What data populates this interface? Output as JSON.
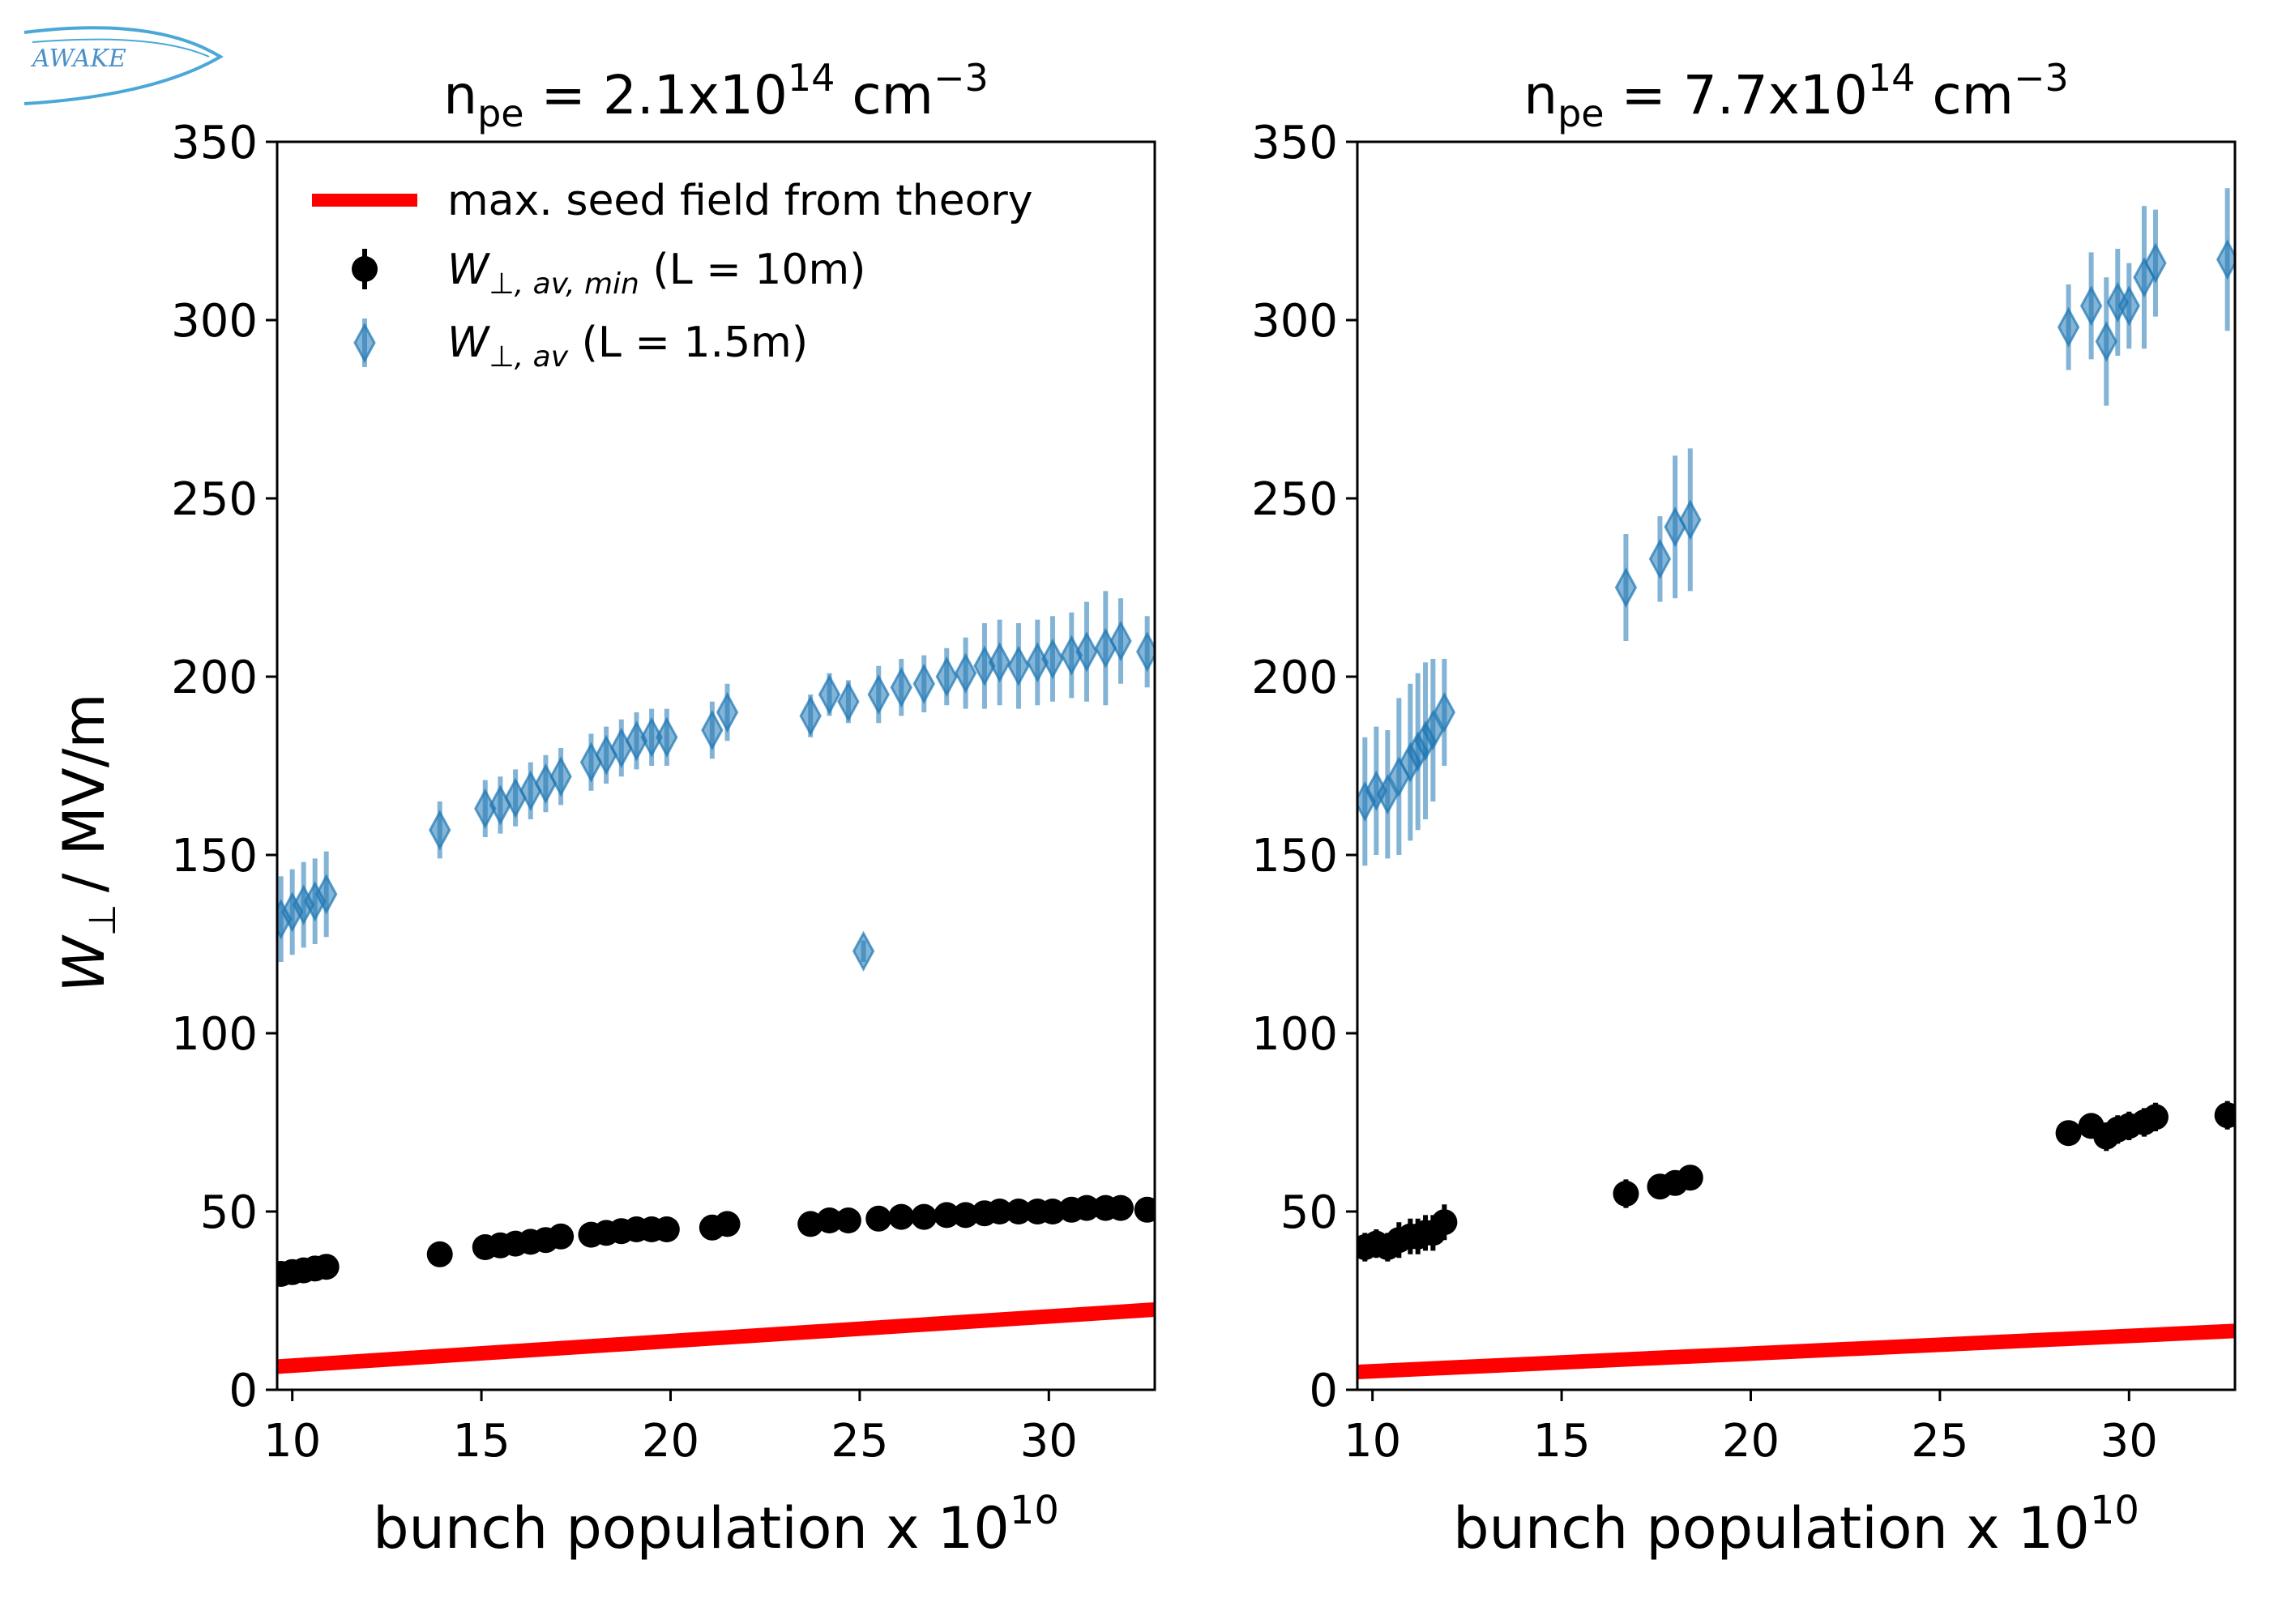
{
  "logo": {
    "text": "AWAKE",
    "color": "#4aa8d8"
  },
  "colors": {
    "theory": "#ff0000",
    "min_series": "#000000",
    "av_series": "#1f77b4"
  },
  "legend": {
    "theory_label": "max. seed field from theory",
    "min_symbol": "W",
    "min_subscript": "⊥, av, min",
    "min_suffix": "(L = 10m)",
    "av_symbol": "W",
    "av_subscript": "⊥, av",
    "av_suffix": "(L = 1.5m)"
  },
  "ylabel_symbol": "W",
  "ylabel_subscript": "⊥",
  "ylabel_unit": "/ MV/m",
  "chart_data": [
    {
      "type": "scatter",
      "title_base": "n",
      "title_sub": "pe",
      "title_value": " = 2.1x10",
      "title_exp": "14",
      "title_unit": " cm",
      "title_unit_exp": "−3",
      "xlabel": "bunch population x 10",
      "xlabel_exp": "10",
      "ylabel": "W⊥ / MV/m",
      "xlim": [
        9.6,
        32.8
      ],
      "ylim": [
        0,
        350
      ],
      "xticks": [
        10,
        15,
        20,
        25,
        30
      ],
      "yticks": [
        0,
        50,
        100,
        150,
        200,
        250,
        300,
        350
      ],
      "theory_line": {
        "name": "max. seed field from theory",
        "x": [
          9.6,
          32.8
        ],
        "y": [
          6.5,
          22.5
        ]
      },
      "series": [
        {
          "name": "W⊥,av,min (L = 10m)",
          "marker": "circle",
          "x": [
            9.7,
            10.0,
            10.3,
            10.6,
            10.9,
            13.9,
            15.1,
            15.5,
            15.9,
            16.3,
            16.7,
            17.1,
            17.9,
            18.3,
            18.7,
            19.1,
            19.5,
            19.9,
            21.1,
            21.5,
            23.7,
            24.2,
            24.7,
            25.5,
            26.1,
            26.7,
            27.3,
            27.8,
            28.3,
            28.7,
            29.2,
            29.7,
            30.1,
            30.6,
            31.0,
            31.5,
            31.9,
            32.6
          ],
          "y": [
            32.5,
            33.0,
            33.5,
            34.0,
            34.5,
            38.0,
            40.0,
            40.5,
            41.0,
            41.5,
            42.0,
            43.0,
            43.5,
            44.0,
            44.5,
            45.0,
            45.0,
            45.0,
            45.5,
            46.5,
            46.5,
            47.5,
            47.5,
            48.0,
            48.5,
            48.5,
            49.0,
            49.0,
            49.5,
            50.0,
            50.0,
            50.0,
            50.0,
            50.5,
            51.0,
            51.0,
            51.0,
            50.5
          ],
          "err": [
            2,
            2,
            2,
            2,
            2,
            2,
            2,
            2,
            2,
            2,
            2,
            2,
            2,
            2,
            2,
            2,
            2,
            2,
            2,
            2,
            2,
            2,
            2,
            2,
            2,
            2,
            2,
            2,
            2,
            2,
            2,
            2,
            2,
            3,
            3,
            3,
            3,
            3
          ]
        },
        {
          "name": "W⊥,av (L = 1.5m)",
          "marker": "diamond",
          "x": [
            9.7,
            10.0,
            10.3,
            10.6,
            10.9,
            13.9,
            15.1,
            15.5,
            15.9,
            16.3,
            16.7,
            17.1,
            17.9,
            18.3,
            18.7,
            19.1,
            19.5,
            19.9,
            21.1,
            21.5,
            23.7,
            24.2,
            24.7,
            25.1,
            25.5,
            26.1,
            26.7,
            27.3,
            27.8,
            28.3,
            28.7,
            29.2,
            29.7,
            30.1,
            30.6,
            31.0,
            31.5,
            31.9,
            32.6
          ],
          "y": [
            132,
            134,
            136,
            137,
            139,
            157,
            163,
            164,
            166,
            168,
            170,
            172,
            176,
            178,
            180,
            182,
            183,
            183,
            185,
            190,
            189,
            195,
            193,
            123,
            195,
            197,
            198,
            200,
            201,
            203,
            204,
            203,
            204,
            205,
            206,
            207,
            208,
            210,
            207
          ],
          "err": [
            12,
            12,
            12,
            12,
            12,
            8,
            8,
            8,
            8,
            8,
            8,
            8,
            8,
            8,
            8,
            8,
            8,
            8,
            8,
            8,
            6,
            6,
            6,
            3,
            8,
            8,
            8,
            8,
            10,
            12,
            12,
            12,
            12,
            12,
            12,
            14,
            16,
            12,
            10
          ]
        }
      ]
    },
    {
      "type": "scatter",
      "title_base": "n",
      "title_sub": "pe",
      "title_value": " = 7.7x10",
      "title_exp": "14",
      "title_unit": " cm",
      "title_unit_exp": "−3",
      "xlabel": "bunch population x 10",
      "xlabel_exp": "10",
      "ylabel": "",
      "xlim": [
        9.6,
        32.8
      ],
      "ylim": [
        0,
        350
      ],
      "xticks": [
        10,
        15,
        20,
        25,
        30
      ],
      "yticks": [
        0,
        50,
        100,
        150,
        200,
        250,
        300,
        350
      ],
      "theory_line": {
        "name": "max. seed field from theory",
        "x": [
          9.6,
          32.8
        ],
        "y": [
          5.0,
          16.5
        ]
      },
      "series": [
        {
          "name": "W⊥,av,min (L = 10m)",
          "marker": "circle",
          "x": [
            9.8,
            10.1,
            10.4,
            10.7,
            11.0,
            11.2,
            11.4,
            11.6,
            11.9,
            16.7,
            17.6,
            18.0,
            18.4,
            28.4,
            29.0,
            29.4,
            29.7,
            30.0,
            30.4,
            30.7,
            32.6
          ],
          "y": [
            40,
            41,
            40,
            42,
            43,
            43,
            44,
            44,
            47,
            55,
            57,
            58,
            59.5,
            72,
            74,
            71,
            73,
            74,
            75,
            76.5,
            77
          ],
          "err": [
            4,
            4,
            4,
            5,
            5,
            5,
            5,
            5,
            5,
            4,
            3,
            3,
            3,
            3,
            3,
            4,
            4,
            4,
            4,
            4,
            4
          ]
        },
        {
          "name": "W⊥,av (L = 1.5m)",
          "marker": "diamond",
          "x": [
            9.8,
            10.1,
            10.4,
            10.7,
            11.0,
            11.2,
            11.4,
            11.6,
            11.9,
            16.7,
            17.6,
            18.0,
            18.4,
            28.4,
            29.0,
            29.4,
            29.7,
            30.0,
            30.4,
            30.7,
            32.6
          ],
          "y": [
            165,
            168,
            167,
            172,
            176,
            179,
            182,
            185,
            190,
            225,
            233,
            242,
            244,
            298,
            304,
            294,
            305,
            304,
            312,
            316,
            317
          ],
          "err": [
            18,
            18,
            18,
            22,
            22,
            22,
            22,
            20,
            15,
            15,
            12,
            20,
            20,
            12,
            15,
            18,
            15,
            12,
            20,
            15,
            20
          ]
        }
      ]
    }
  ]
}
